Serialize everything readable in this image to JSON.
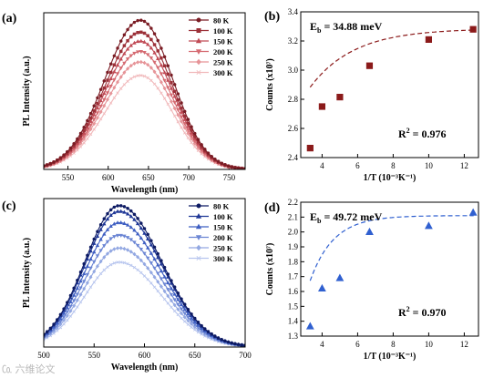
{
  "watermark": "㏇ 六维论文",
  "chart_data": [
    {
      "type": "line",
      "panel_label": "(a)",
      "xlabel": "Wavelength (nm)",
      "ylabel": "PL Intensity (a.u.)",
      "xlim": [
        520,
        770
      ],
      "ylim": [
        0,
        1.05
      ],
      "xticks": [
        550,
        600,
        650,
        700,
        750
      ],
      "legend_position": "top-right",
      "curve": {
        "center": 640,
        "sigma_left": 44,
        "sigma_right": 40
      },
      "series": [
        {
          "name": "80 K",
          "peak": 1.0,
          "color": "#7a1c24",
          "marker": "circle"
        },
        {
          "name": "100 K",
          "peak": 0.92,
          "color": "#9c3038",
          "marker": "square"
        },
        {
          "name": "150 K",
          "peak": 0.86,
          "color": "#c04a55",
          "marker": "triangle"
        },
        {
          "name": "200 K",
          "peak": 0.79,
          "color": "#d56b72",
          "marker": "triangle-down"
        },
        {
          "name": "250 K",
          "peak": 0.72,
          "color": "#e69498",
          "marker": "diamond"
        },
        {
          "name": "300 K",
          "peak": 0.63,
          "color": "#f1b9bb",
          "marker": "cross"
        }
      ]
    },
    {
      "type": "scatter",
      "panel_label": "(b)",
      "xlabel": "1/T (10⁻³K⁻¹)",
      "ylabel": "Counts (x10⁷)",
      "xlim": [
        2.8,
        12.8
      ],
      "ylim": [
        2.4,
        3.4
      ],
      "xticks": [
        4,
        6,
        8,
        10,
        12
      ],
      "yticks": [
        2.4,
        2.6,
        2.8,
        3.0,
        3.2,
        3.4
      ],
      "eb_text": "E",
      "eb_sub": "b",
      "eb_value": " = 34.88 meV",
      "r2_text": "R",
      "r2_sup": "2",
      "r2_value": " = 0.976",
      "marker_color": "#8b1a1a",
      "fit_color": "#8b1a1a",
      "marker": "square",
      "points": [
        {
          "x": 3.33,
          "y": 2.465
        },
        {
          "x": 4.0,
          "y": 2.75
        },
        {
          "x": 5.0,
          "y": 2.815
        },
        {
          "x": 6.67,
          "y": 3.03
        },
        {
          "x": 10.0,
          "y": 3.21
        },
        {
          "x": 12.5,
          "y": 3.28
        }
      ],
      "fit": {
        "asymptote": 3.285,
        "amplitude": 1.55,
        "rate": 0.405
      }
    },
    {
      "type": "line",
      "panel_label": "(c)",
      "xlabel": "Wavelength (nm)",
      "ylabel": "PL Intensity (a.u.)",
      "xlim": [
        500,
        700
      ],
      "ylim": [
        0,
        1.05
      ],
      "xticks": [
        500,
        550,
        600,
        650,
        700
      ],
      "legend_position": "top-right",
      "curve": {
        "center": 575,
        "sigma_left": 34,
        "sigma_right": 42
      },
      "series": [
        {
          "name": "80 K",
          "peak": 1.0,
          "color": "#0d1a63",
          "marker": "circle"
        },
        {
          "name": "100 K",
          "peak": 0.96,
          "color": "#1f3796",
          "marker": "triangle"
        },
        {
          "name": "150 K",
          "peak": 0.88,
          "color": "#3f5fc2",
          "marker": "triangle"
        },
        {
          "name": "200 K",
          "peak": 0.79,
          "color": "#6c86d4",
          "marker": "triangle-down"
        },
        {
          "name": "250 K",
          "peak": 0.7,
          "color": "#93a8e2",
          "marker": "diamond"
        },
        {
          "name": "300 K",
          "peak": 0.6,
          "color": "#b7c5ee",
          "marker": "cross"
        }
      ]
    },
    {
      "type": "scatter",
      "panel_label": "(d)",
      "xlabel": "1/T (10⁻³K⁻¹)",
      "ylabel": "Counts (x10⁷)",
      "xlim": [
        2.8,
        12.8
      ],
      "ylim": [
        1.3,
        2.2
      ],
      "xticks": [
        4,
        6,
        8,
        10,
        12
      ],
      "yticks": [
        1.3,
        1.4,
        1.5,
        1.6,
        1.7,
        1.8,
        1.9,
        2.0,
        2.1,
        2.2
      ],
      "eb_text": "E",
      "eb_sub": "b",
      "eb_value": " = 49.72 meV",
      "r2_text": "R",
      "r2_sup": "2",
      "r2_value": " = 0.970",
      "marker_color": "#3060d0",
      "fit_color": "#3060d0",
      "marker": "triangle",
      "points": [
        {
          "x": 3.33,
          "y": 1.365
        },
        {
          "x": 4.0,
          "y": 1.62
        },
        {
          "x": 5.0,
          "y": 1.69
        },
        {
          "x": 6.67,
          "y": 2.0
        },
        {
          "x": 10.0,
          "y": 2.04
        },
        {
          "x": 12.5,
          "y": 2.13
        }
      ],
      "fit": {
        "asymptote": 2.11,
        "amplitude": 5.5,
        "rate": 0.76
      }
    }
  ]
}
